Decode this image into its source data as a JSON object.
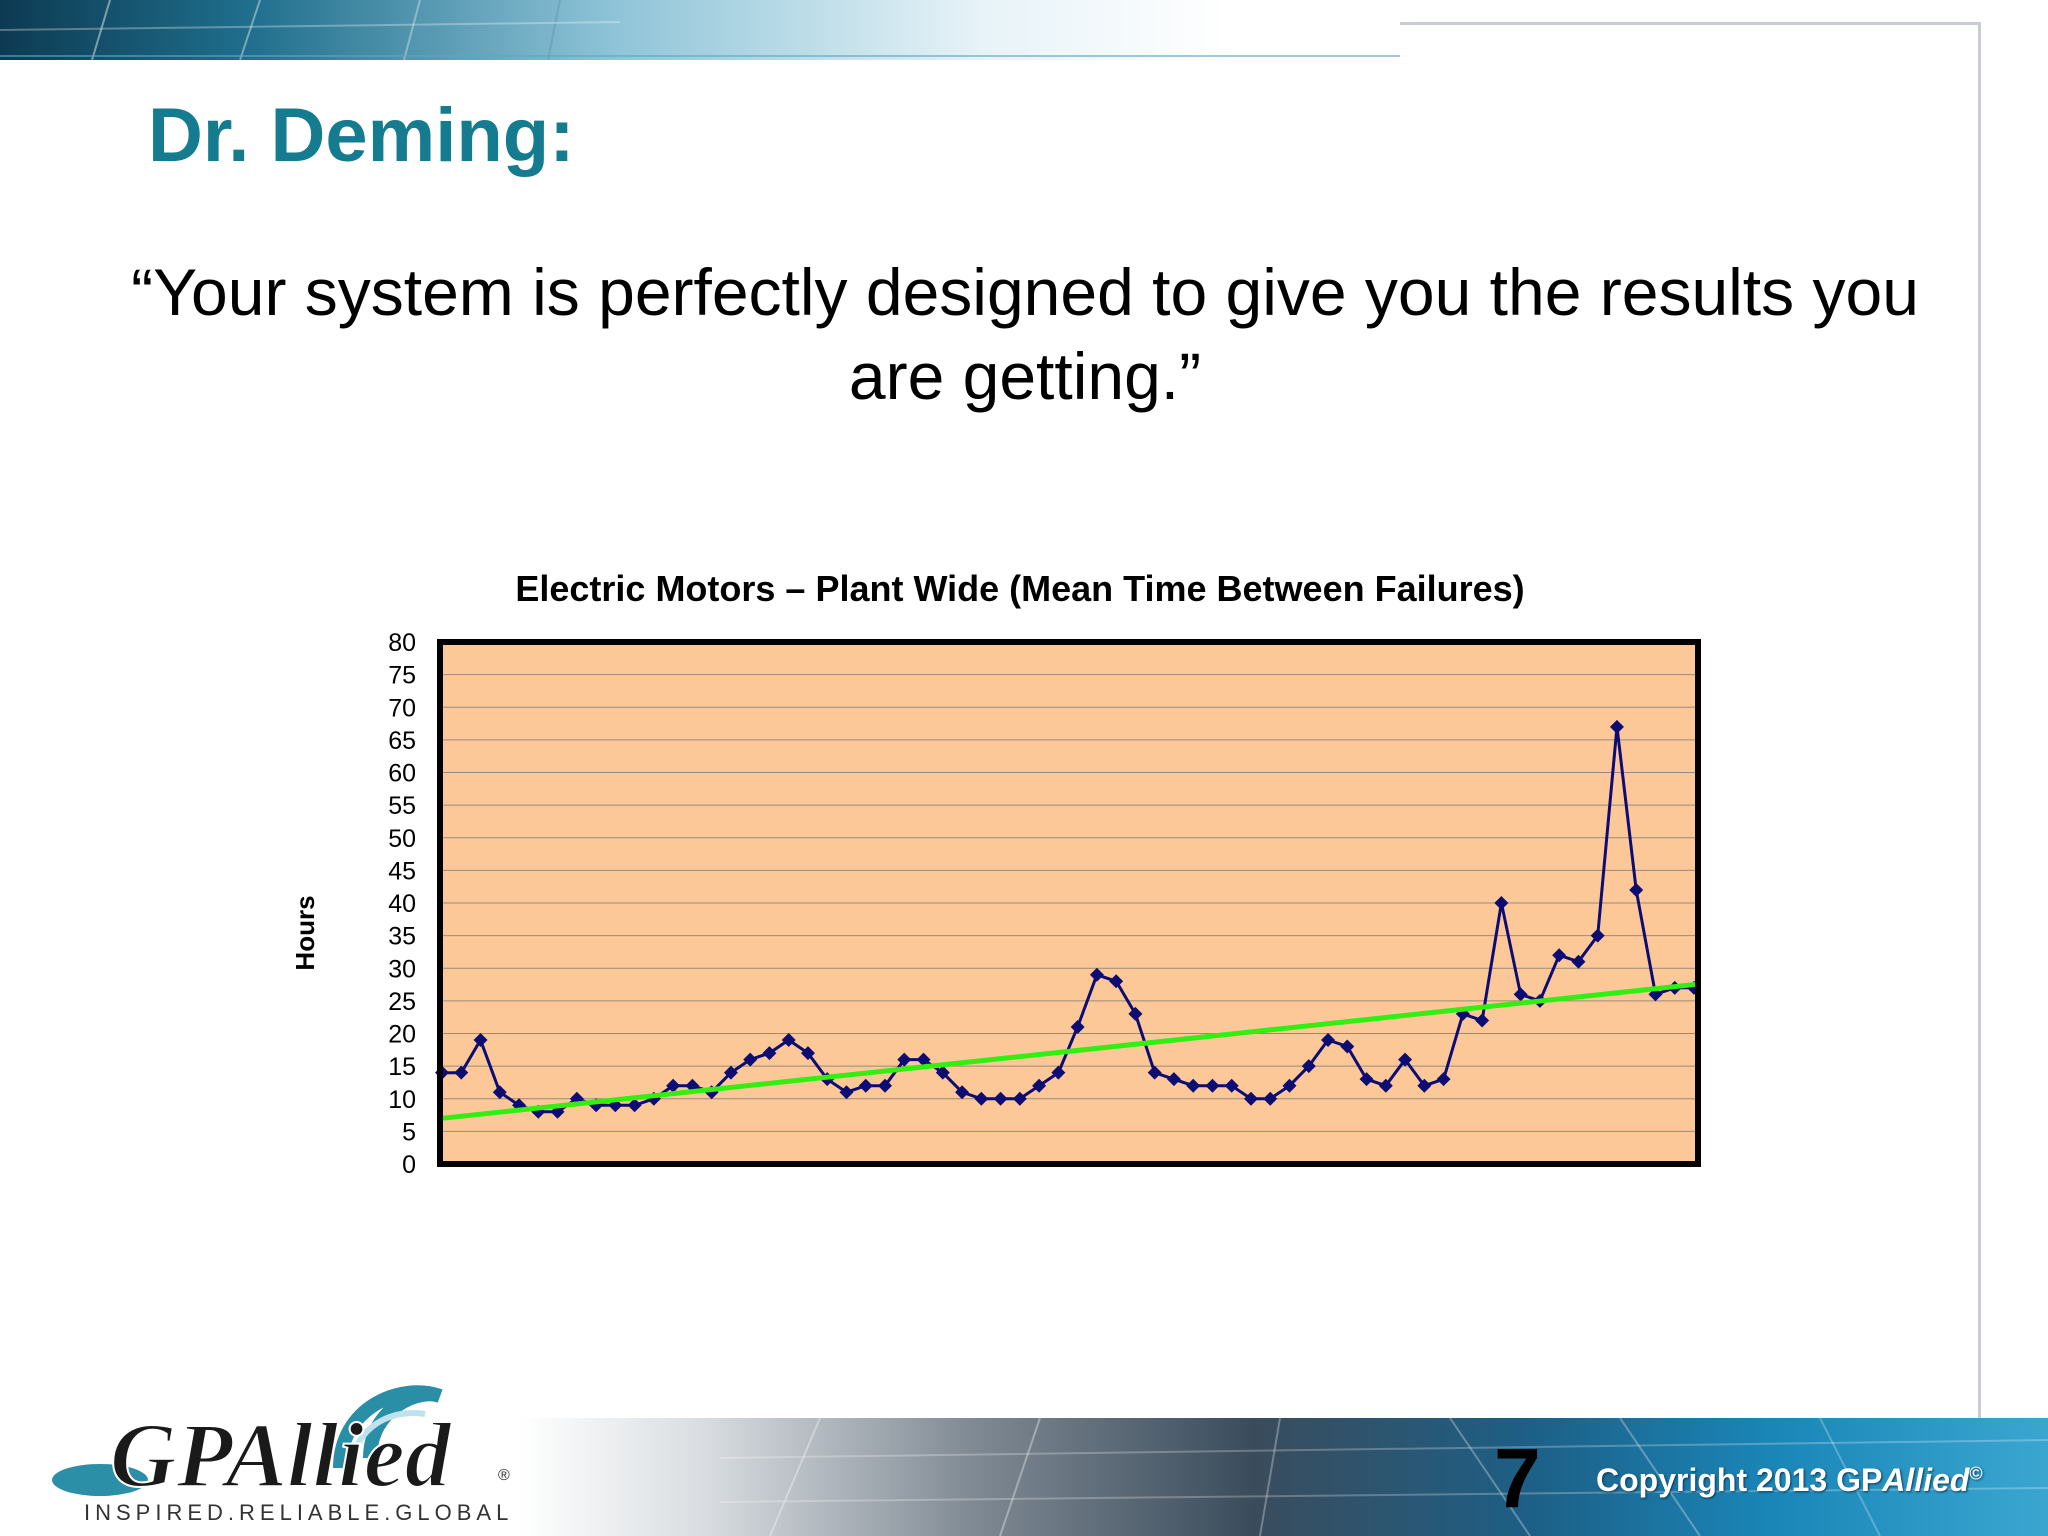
{
  "slide": {
    "title": "Dr. Deming:",
    "quote": "“Your system is perfectly designed to give you the results you are getting.”",
    "page_number": "7",
    "copyright_prefix": "Copyright 2013 GP",
    "copyright_brand": "Allied",
    "copyright_mark": "©"
  },
  "logo": {
    "name": "GPAllied",
    "tagline": "INSPIRED.RELIABLE.GLOBAL",
    "registered": "®"
  },
  "colors": {
    "title": "#157b8f",
    "plot_background": "#fdc898",
    "series_line": "#0c0c72",
    "trend_line": "#33ee11",
    "gridline": "#9a8a7a"
  },
  "chart_data": {
    "type": "line",
    "title": "Electric Motors – Plant Wide (Mean Time Between Failures)",
    "xlabel": "",
    "ylabel": "Hours",
    "ylim": [
      0,
      80
    ],
    "yticks": [
      0,
      5,
      10,
      15,
      20,
      25,
      30,
      35,
      40,
      45,
      50,
      55,
      60,
      65,
      70,
      75,
      80
    ],
    "grid": true,
    "legend": "none",
    "series": [
      {
        "marker": "diamond",
        "values": [
          14,
          14,
          19,
          11,
          9,
          8,
          8,
          10,
          9,
          9,
          9,
          10,
          12,
          12,
          11,
          14,
          16,
          17,
          19,
          17,
          13,
          11,
          12,
          12,
          16,
          16,
          14,
          11,
          10,
          10,
          10,
          12,
          14,
          21,
          29,
          28,
          23,
          14,
          13,
          12,
          12,
          12,
          10,
          10,
          12,
          15,
          19,
          18,
          13,
          12,
          16,
          12,
          13,
          23,
          22,
          40,
          26,
          25,
          32,
          31,
          35,
          67,
          42,
          26,
          27,
          27
        ]
      }
    ],
    "trendline": {
      "start": 7,
      "end": 27.5
    }
  }
}
